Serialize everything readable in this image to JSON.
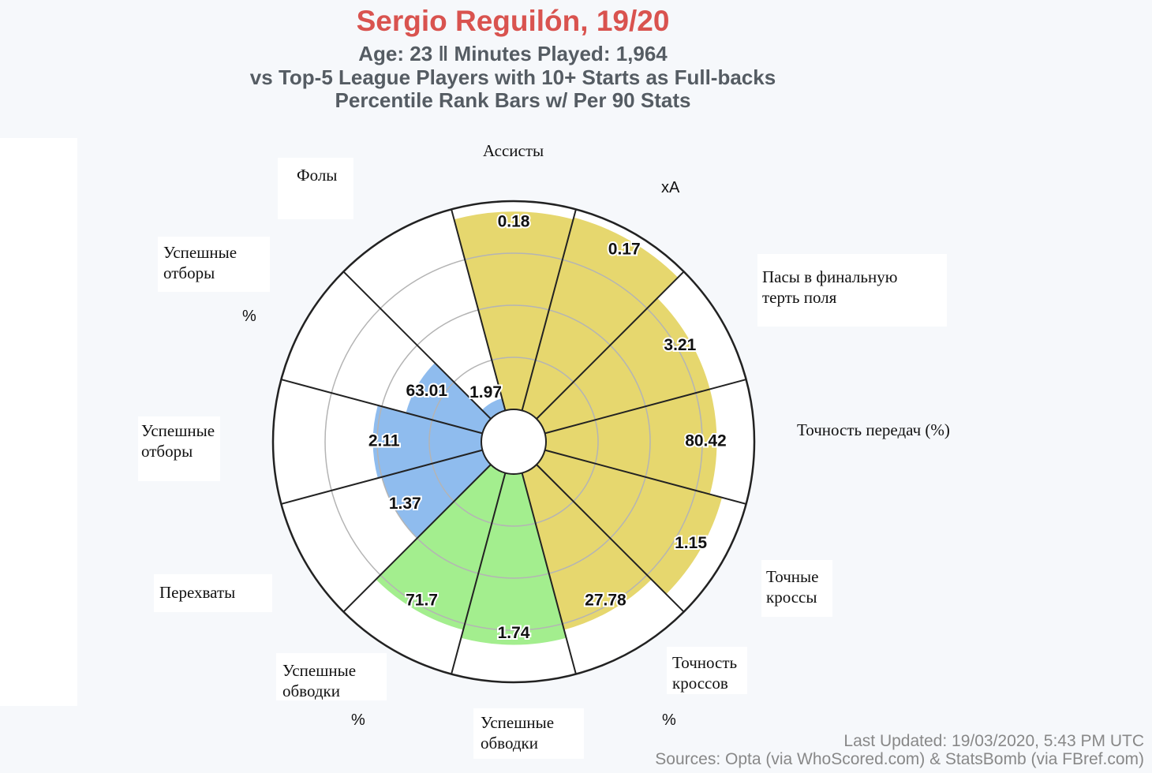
{
  "chart_data": {
    "type": "polar-bar",
    "title": "Sergio Reguilón, 19/20",
    "subtitle_lines": [
      "Age: 23 ‖ Minutes Played: 1,964",
      "vs Top-5 League Players with 10+ Starts as Full-backs",
      "Percentile Rank Bars w/ Per 90 Stats"
    ],
    "rlim": [
      0,
      100
    ],
    "grid": true,
    "colors": {
      "attacking": "#e6d76e",
      "possession": "#a3ee8e",
      "defending": "#8fbcee",
      "outer_ring": "#ffffff",
      "spokes": "#222222",
      "grid": "#b4b4b4"
    },
    "categories": [
      {
        "label": "Ассисты",
        "value_label": "0.18",
        "percentile": 95,
        "group": "attacking"
      },
      {
        "label": "xA",
        "value_label": "0.17",
        "percentile": 96,
        "group": "attacking"
      },
      {
        "label": "Пасы в финальную терть поля",
        "value_label": "3.21",
        "percentile": 82,
        "group": "attacking"
      },
      {
        "label": "Точность передач (%)",
        "value_label": "80.42",
        "percentile": 82,
        "group": "attacking"
      },
      {
        "label": "Точные кроссы",
        "value_label": "1.15",
        "percentile": 88,
        "group": "attacking"
      },
      {
        "label": "Точность кроссов %",
        "value_label": "27.78",
        "percentile": 78,
        "group": "attacking"
      },
      {
        "label": "Успешные обводки",
        "value_label": "1.74",
        "percentile": 82,
        "group": "possession"
      },
      {
        "label": "Успешные обводки %",
        "value_label": "71.7",
        "percentile": 78,
        "group": "possession"
      },
      {
        "label": "Перехваты",
        "value_label": "1.37",
        "percentile": 50,
        "group": "defending"
      },
      {
        "label": "Успешные отборы",
        "value_label": "2.11",
        "percentile": 52,
        "group": "defending"
      },
      {
        "label": "Успешные отборы %",
        "value_label": "63.01",
        "percentile": 38,
        "group": "defending"
      },
      {
        "label": "Фолы",
        "value_label": "1.97",
        "percentile": 6,
        "group": "defending"
      }
    ]
  },
  "footer": {
    "updated": "Last Updated: 19/03/2020, 5:43 PM UTC",
    "sources": "Sources: Opta (via WhoScored.com) & StatsBomb (via FBref.com)"
  }
}
